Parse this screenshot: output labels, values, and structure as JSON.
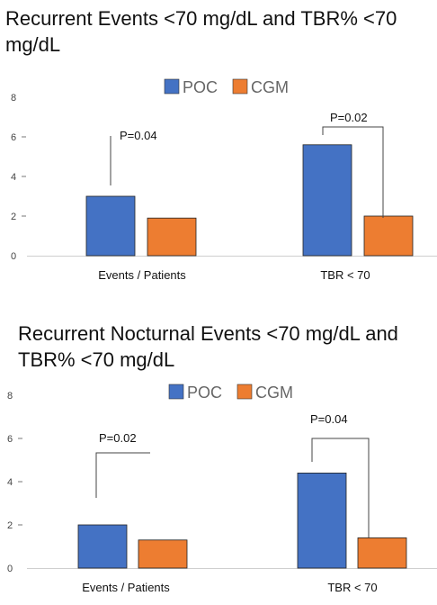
{
  "chart_data": [
    {
      "type": "bar",
      "title": "Recurrent Events <70 mg/dL and TBR% <70 mg/dL",
      "categories": [
        "Events / Patients",
        "TBR < 70"
      ],
      "series": [
        {
          "name": "POC",
          "color": "#4472c4",
          "values": [
            3.0,
            5.6
          ]
        },
        {
          "name": "CGM",
          "color": "#ed7d31",
          "values": [
            1.9,
            2.0
          ]
        }
      ],
      "yticks": [
        "0",
        "2",
        "4",
        "6",
        "8"
      ],
      "ylim": [
        0,
        8
      ],
      "pvalues": [
        "P=0.04",
        "P=0.02"
      ],
      "legend_position": "top-center",
      "grid": false
    },
    {
      "type": "bar",
      "title": "Recurrent Nocturnal Events <70 mg/dL and TBR% <70 mg/dL",
      "categories": [
        "Events / Patients",
        "TBR < 70"
      ],
      "series": [
        {
          "name": "POC",
          "color": "#4472c4",
          "values": [
            2.0,
            4.4
          ]
        },
        {
          "name": "CGM",
          "color": "#ed7d31",
          "values": [
            1.3,
            1.4
          ]
        }
      ],
      "yticks": [
        "0",
        "2",
        "4",
        "6",
        "8"
      ],
      "ylim": [
        0,
        8
      ],
      "pvalues": [
        "P=0.02",
        "P=0.04"
      ],
      "legend_position": "top-center",
      "grid": false
    }
  ]
}
